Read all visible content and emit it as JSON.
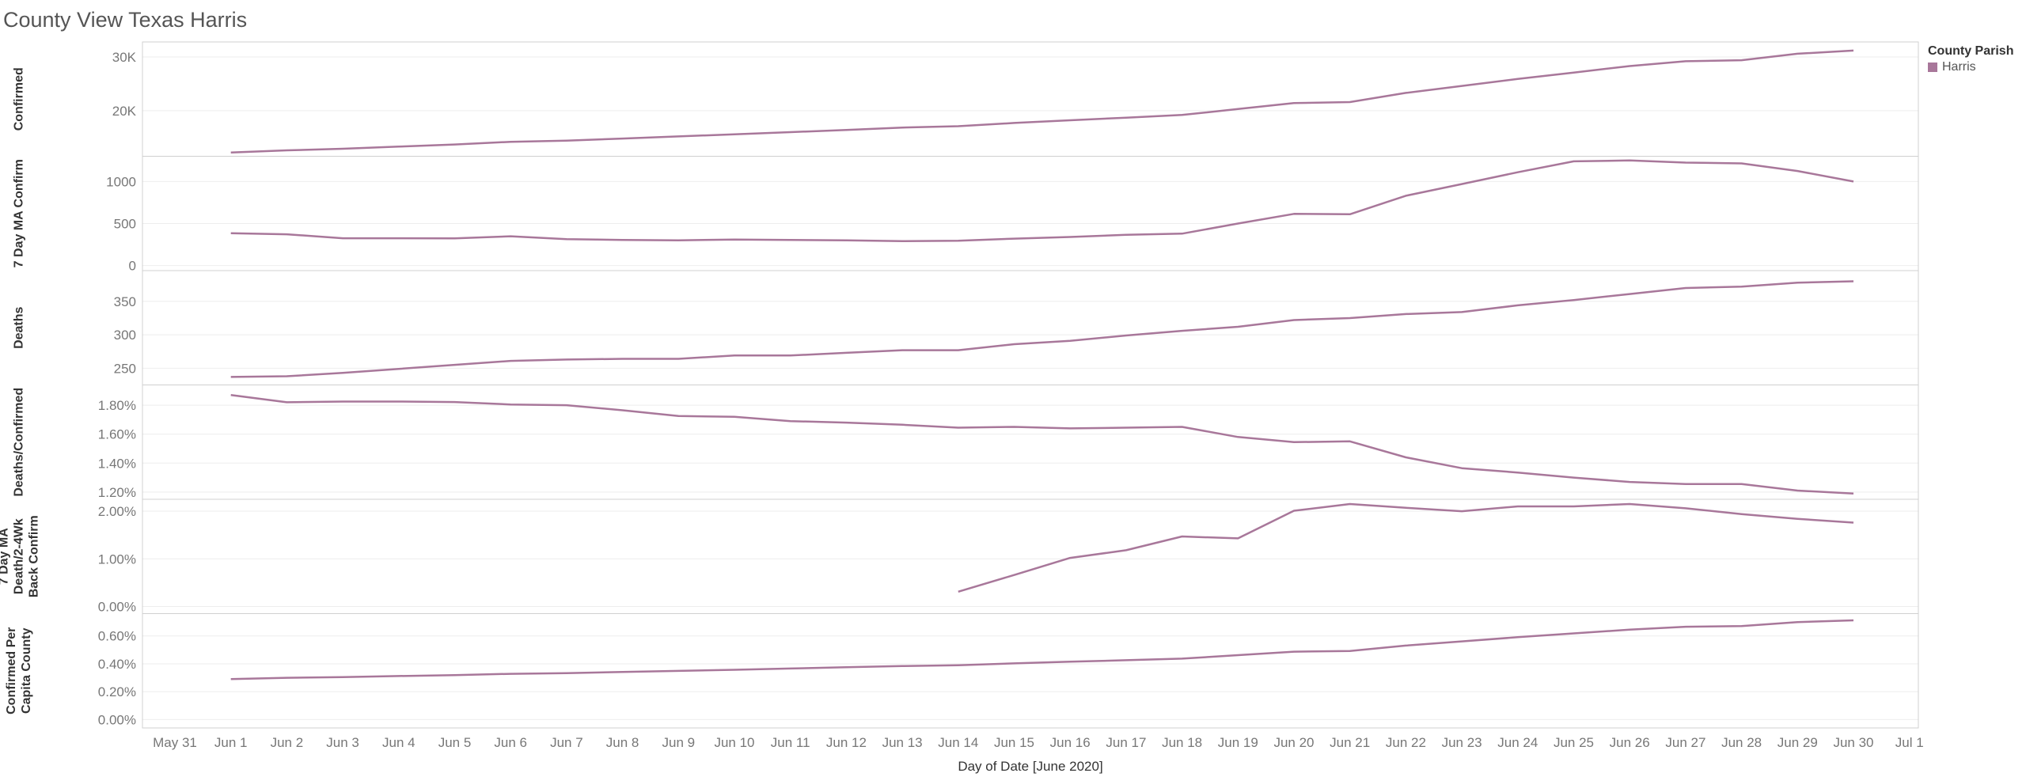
{
  "page_title": "County View Texas Harris",
  "legend": {
    "title": "County Parish",
    "items": [
      {
        "label": "Harris",
        "color": "#a8779a"
      }
    ]
  },
  "colors": {
    "line": "#a8779a",
    "axis_text": "#777777",
    "grid": "#eeeeee",
    "border": "#d0d0d0"
  },
  "chart_data": {
    "type": "line",
    "xlabel": "Day of Date [June 2020]",
    "x_ticks": [
      "May 31",
      "Jun 1",
      "Jun 2",
      "Jun 3",
      "Jun 4",
      "Jun 5",
      "Jun 6",
      "Jun 7",
      "Jun 8",
      "Jun 9",
      "Jun 10",
      "Jun 11",
      "Jun 12",
      "Jun 13",
      "Jun 14",
      "Jun 15",
      "Jun 16",
      "Jun 17",
      "Jun 18",
      "Jun 19",
      "Jun 20",
      "Jun 21",
      "Jun 22",
      "Jun 23",
      "Jun 24",
      "Jun 25",
      "Jun 26",
      "Jun 27",
      "Jun 28",
      "Jun 29",
      "Jun 30",
      "Jul 1"
    ],
    "x": [
      "Jun 1",
      "Jun 2",
      "Jun 3",
      "Jun 4",
      "Jun 5",
      "Jun 6",
      "Jun 7",
      "Jun 8",
      "Jun 9",
      "Jun 10",
      "Jun 11",
      "Jun 12",
      "Jun 13",
      "Jun 14",
      "Jun 15",
      "Jun 16",
      "Jun 17",
      "Jun 18",
      "Jun 19",
      "Jun 20",
      "Jun 21",
      "Jun 22",
      "Jun 23",
      "Jun 24",
      "Jun 25",
      "Jun 26",
      "Jun 27",
      "Jun 28",
      "Jun 29",
      "Jun 30"
    ],
    "panels": [
      {
        "ylabel": "Confirmed",
        "ylim": [
          11500,
          32800
        ],
        "ticks": [
          {
            "label": "30K",
            "value": 30000
          },
          {
            "label": "20K",
            "value": 20000
          }
        ],
        "series": [
          {
            "name": "Harris",
            "values": [
              12200,
              12600,
              12900,
              13300,
              13700,
              14200,
              14400,
              14800,
              15200,
              15600,
              16000,
              16400,
              16850,
              17100,
              17700,
              18200,
              18700,
              19200,
              20300,
              21400,
              21600,
              23300,
              24600,
              25900,
              27100,
              28300,
              29200,
              29400,
              30600,
              31200
            ]
          }
        ]
      },
      {
        "ylabel": "7 Day MA Confirm",
        "ylim": [
          -60,
          1300
        ],
        "ticks": [
          {
            "label": "1000",
            "value": 1000
          },
          {
            "label": "500",
            "value": 500
          },
          {
            "label": "0",
            "value": 0
          }
        ],
        "series": [
          {
            "name": "Harris",
            "values": [
              385,
              372,
              325,
              325,
              323,
              348,
              315,
              305,
              300,
              310,
              305,
              300,
              290,
              295,
              320,
              340,
              365,
              380,
              500,
              615,
              610,
              830,
              970,
              1110,
              1240,
              1250,
              1225,
              1215,
              1125,
              1000
            ]
          }
        ]
      },
      {
        "ylabel": "Deaths",
        "ylim": [
          225,
          396
        ],
        "ticks": [
          {
            "label": "350",
            "value": 350
          },
          {
            "label": "300",
            "value": 300
          },
          {
            "label": "250",
            "value": 250
          }
        ],
        "series": [
          {
            "name": "Harris",
            "values": [
              237,
              238,
              243,
              249,
              255,
              261,
              263,
              264,
              264,
              269,
              269,
              273,
              277,
              277,
              286,
              291,
              299,
              306,
              312,
              322,
              325,
              331,
              334,
              344,
              352,
              361,
              370,
              372,
              378,
              380
            ]
          }
        ]
      },
      {
        "ylabel": "Deaths/Confirmed",
        "ylim": [
          0.0115,
          0.0194
        ],
        "ticks": [
          {
            "label": "1.80%",
            "value": 0.018
          },
          {
            "label": "1.60%",
            "value": 0.016
          },
          {
            "label": "1.40%",
            "value": 0.014
          },
          {
            "label": "1.20%",
            "value": 0.012
          }
        ],
        "series": [
          {
            "name": "Harris",
            "values": [
              0.0187,
              0.0182,
              0.01825,
              0.01825,
              0.01822,
              0.01805,
              0.018,
              0.01765,
              0.01725,
              0.0172,
              0.0169,
              0.0168,
              0.01665,
              0.01645,
              0.0165,
              0.0164,
              0.01645,
              0.0165,
              0.0158,
              0.01545,
              0.0155,
              0.0144,
              0.01365,
              0.01335,
              0.013,
              0.0127,
              0.01255,
              0.01255,
              0.0121,
              0.0119
            ]
          }
        ]
      },
      {
        "ylabel_lines": [
          "7 Day MA",
          "Death/2-4Wk",
          "Back Confirm"
        ],
        "ylim": [
          -0.0015,
          0.0225
        ],
        "ticks": [
          {
            "label": "2.00%",
            "value": 0.02
          },
          {
            "label": "1.00%",
            "value": 0.01
          },
          {
            "label": "0.00%",
            "value": 0
          }
        ],
        "series": [
          {
            "name": "Harris",
            "values": [
              null,
              null,
              null,
              null,
              null,
              null,
              null,
              null,
              null,
              null,
              null,
              null,
              null,
              0.0031,
              0.0066,
              0.0102,
              0.0118,
              0.0147,
              0.0143,
              0.0201,
              0.0215,
              0.0207,
              0.02,
              0.021,
              0.021,
              0.0215,
              0.0206,
              0.0194,
              0.0184,
              0.0176
            ]
          }
        ]
      },
      {
        "ylabel_lines": [
          "Confirmed Per",
          "Capita County"
        ],
        "ylim": [
          -0.0006,
          0.0076
        ],
        "ticks": [
          {
            "label": "0.60%",
            "value": 0.006
          },
          {
            "label": "0.40%",
            "value": 0.004
          },
          {
            "label": "0.20%",
            "value": 0.002
          },
          {
            "label": "0.00%",
            "value": 0
          }
        ],
        "series": [
          {
            "name": "Harris",
            "values": [
              0.0029,
              0.003,
              0.00305,
              0.00312,
              0.00319,
              0.00328,
              0.00333,
              0.00341,
              0.00349,
              0.00357,
              0.00366,
              0.00375,
              0.00384,
              0.0039,
              0.00403,
              0.00415,
              0.00426,
              0.00437,
              0.00462,
              0.00487,
              0.00492,
              0.00531,
              0.00561,
              0.00591,
              0.00618,
              0.00645,
              0.00666,
              0.00671,
              0.00699,
              0.00712
            ]
          }
        ]
      }
    ]
  }
}
